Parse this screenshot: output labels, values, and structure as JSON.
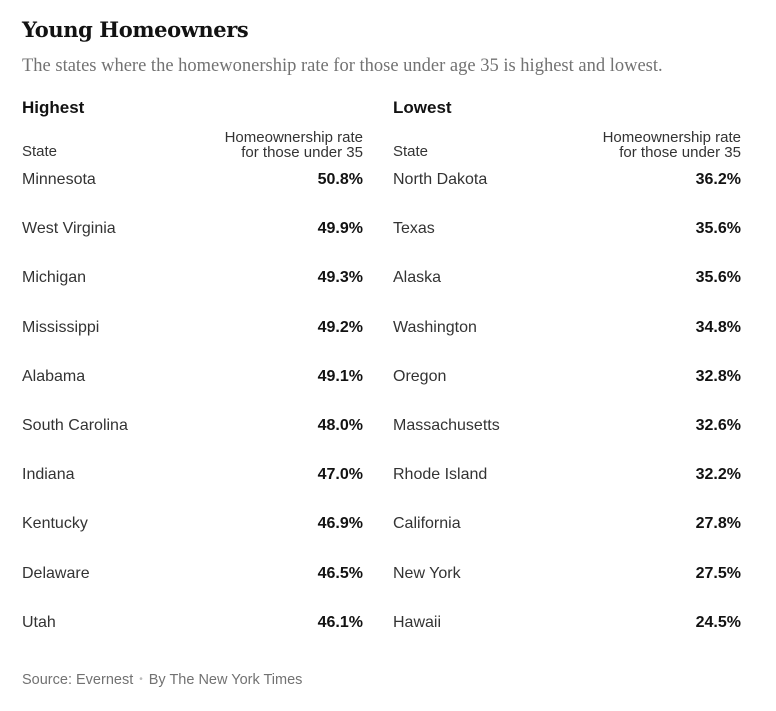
{
  "title": "Young Homeowners",
  "subtitle": "The states where the homewonership rate for those under age 35 is highest and lowest.",
  "highest": {
    "heading": "Highest",
    "col_state": "State",
    "col_rate_line1": "Homeownership rate",
    "col_rate_line2": "for those under 35",
    "rows": [
      {
        "state": "Minnesota",
        "rate": "50.8%"
      },
      {
        "state": "West Virginia",
        "rate": "49.9%"
      },
      {
        "state": "Michigan",
        "rate": "49.3%"
      },
      {
        "state": "Mississippi",
        "rate": "49.2%"
      },
      {
        "state": "Alabama",
        "rate": "49.1%"
      },
      {
        "state": "South Carolina",
        "rate": "48.0%"
      },
      {
        "state": "Indiana",
        "rate": "47.0%"
      },
      {
        "state": "Kentucky",
        "rate": "46.9%"
      },
      {
        "state": "Delaware",
        "rate": "46.5%"
      },
      {
        "state": "Utah",
        "rate": "46.1%"
      }
    ]
  },
  "lowest": {
    "heading": "Lowest",
    "col_state": "State",
    "col_rate_line1": "Homeownership rate",
    "col_rate_line2": "for those under 35",
    "rows": [
      {
        "state": "North Dakota",
        "rate": "36.2%"
      },
      {
        "state": "Texas",
        "rate": "35.6%"
      },
      {
        "state": "Alaska",
        "rate": "35.6%"
      },
      {
        "state": "Washington",
        "rate": "34.8%"
      },
      {
        "state": "Oregon",
        "rate": "32.8%"
      },
      {
        "state": "Massachusetts",
        "rate": "32.6%"
      },
      {
        "state": "Rhode Island",
        "rate": "32.2%"
      },
      {
        "state": "California",
        "rate": "27.8%"
      },
      {
        "state": "New York",
        "rate": "27.5%"
      },
      {
        "state": "Hawaii",
        "rate": "24.5%"
      }
    ]
  },
  "footer": {
    "source": "Source: Evernest",
    "separator": "•",
    "byline": "By The New York Times"
  }
}
